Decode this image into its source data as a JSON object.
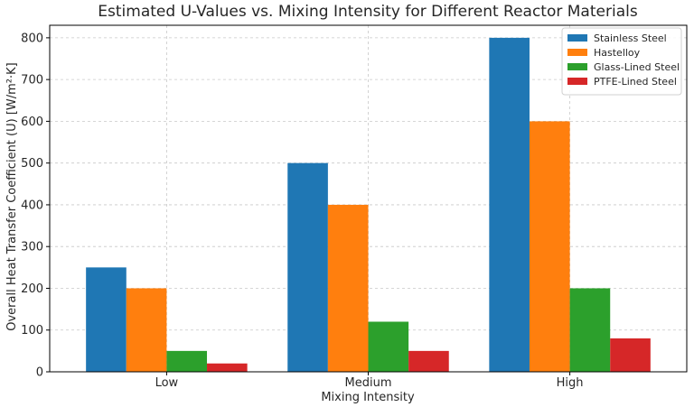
{
  "chart_data": {
    "type": "bar",
    "title": "Estimated U-Values vs. Mixing Intensity for Different Reactor Materials",
    "xlabel": "Mixing Intensity",
    "ylabel": "Overall Heat Transfer Coefficient (U) [W/m²·K]",
    "categories": [
      "Low",
      "Medium",
      "High"
    ],
    "ylim": [
      0,
      830
    ],
    "yticks": [
      0,
      100,
      200,
      300,
      400,
      500,
      600,
      700,
      800
    ],
    "grid": true,
    "legend_position": "top-right",
    "series": [
      {
        "name": "Stainless Steel",
        "color": "#1f77b4",
        "values": [
          250,
          500,
          800
        ]
      },
      {
        "name": "Hastelloy",
        "color": "#ff7f0e",
        "values": [
          200,
          400,
          600
        ]
      },
      {
        "name": "Glass-Lined Steel",
        "color": "#2ca02c",
        "values": [
          50,
          120,
          200
        ]
      },
      {
        "name": "PTFE-Lined Steel",
        "color": "#d62728",
        "values": [
          20,
          50,
          80
        ]
      }
    ]
  }
}
